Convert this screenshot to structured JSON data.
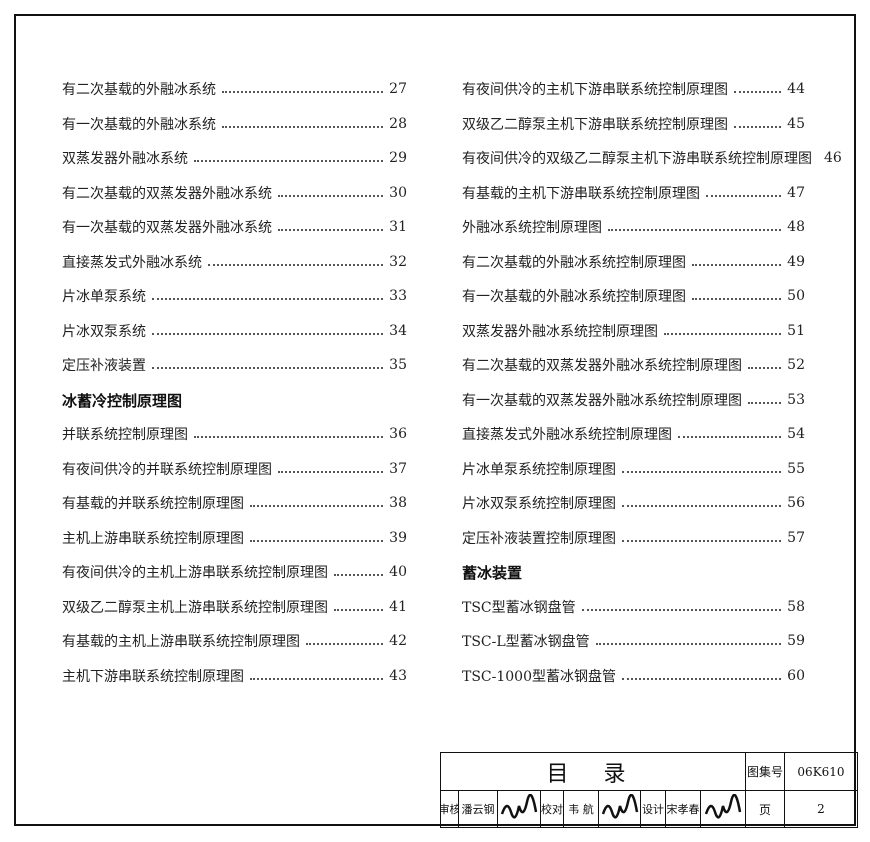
{
  "columns": [
    [
      {
        "title": "有二次基载的外融冰系统",
        "page": 27
      },
      {
        "title": "有一次基载的外融冰系统",
        "page": 28
      },
      {
        "title": "双蒸发器外融冰系统",
        "page": 29
      },
      {
        "title": "有二次基载的双蒸发器外融冰系统",
        "page": 30
      },
      {
        "title": "有一次基载的双蒸发器外融冰系统",
        "page": 31
      },
      {
        "title": "直接蒸发式外融冰系统",
        "page": 32
      },
      {
        "title": "片冰单泵系统",
        "page": 33
      },
      {
        "title": "片冰双泵系统",
        "page": 34
      },
      {
        "title": "定压补液装置",
        "page": 35
      },
      {
        "heading": "冰蓄冷控制原理图"
      },
      {
        "title": "并联系统控制原理图",
        "page": 36
      },
      {
        "title": "有夜间供冷的并联系统控制原理图",
        "page": 37
      },
      {
        "title": "有基载的并联系统控制原理图",
        "page": 38
      },
      {
        "title": "主机上游串联系统控制原理图",
        "page": 39
      },
      {
        "title": "有夜间供冷的主机上游串联系统控制原理图",
        "page": 40
      },
      {
        "title": "双级乙二醇泵主机上游串联系统控制原理图",
        "page": 41
      },
      {
        "title": "有基载的主机上游串联系统控制原理图",
        "page": 42
      },
      {
        "title": "主机下游串联系统控制原理图",
        "page": 43
      }
    ],
    [
      {
        "title": "有夜间供冷的主机下游串联系统控制原理图",
        "page": 44
      },
      {
        "title": "双级乙二醇泵主机下游串联系统控制原理图",
        "page": 45
      },
      {
        "title": "有夜间供冷的双级乙二醇泵主机下游串联系统控制原理图",
        "page": 46
      },
      {
        "title": "有基载的主机下游串联系统控制原理图",
        "page": 47
      },
      {
        "title": "外融冰系统控制原理图",
        "page": 48
      },
      {
        "title": "有二次基载的外融冰系统控制原理图",
        "page": 49
      },
      {
        "title": "有一次基载的外融冰系统控制原理图",
        "page": 50
      },
      {
        "title": "双蒸发器外融冰系统控制原理图",
        "page": 51
      },
      {
        "title": "有二次基载的双蒸发器外融冰系统控制原理图",
        "page": 52
      },
      {
        "title": "有一次基载的双蒸发器外融冰系统控制原理图",
        "page": 53
      },
      {
        "title": "直接蒸发式外融冰系统控制原理图",
        "page": 54
      },
      {
        "title": "片冰单泵系统控制原理图",
        "page": 55
      },
      {
        "title": "片冰双泵系统控制原理图",
        "page": 56
      },
      {
        "title": "定压补液装置控制原理图",
        "page": 57
      },
      {
        "heading": "蓄冰装置"
      },
      {
        "title": "TSC型蓄冰钢盘管",
        "page": 58
      },
      {
        "title": "TSC-L型蓄冰钢盘管",
        "page": 59
      },
      {
        "title": "TSC-1000型蓄冰钢盘管",
        "page": 60
      }
    ]
  ],
  "title_block": {
    "title": "目 录",
    "atlas_label": "图集号",
    "atlas_no": "06K610",
    "page_label": "页",
    "page": "2",
    "roles": [
      {
        "role": "审核",
        "name": "潘云钢"
      },
      {
        "role": "校对",
        "name": "韦 航"
      },
      {
        "role": "设计",
        "name": "宋孝春"
      }
    ]
  }
}
